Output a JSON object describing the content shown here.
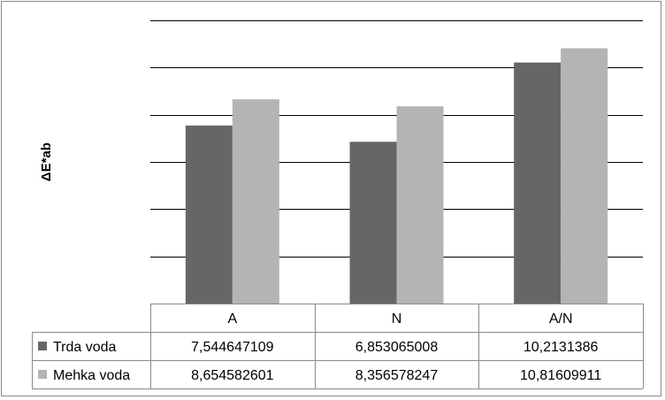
{
  "chart_data": {
    "type": "bar",
    "title": "",
    "xlabel": "",
    "ylabel": "ΔE*ab",
    "categories": [
      "A",
      "N",
      "A/N"
    ],
    "series": [
      {
        "name": "Trda voda",
        "values": [
          "7,544647109",
          "6,853065008",
          "10,2131386"
        ],
        "numeric": [
          7.544647109,
          6.853065008,
          10.2131386
        ],
        "color": "#666666"
      },
      {
        "name": "Mehka voda",
        "values": [
          "8,654582601",
          "8,356578247",
          "10,81609911"
        ],
        "numeric": [
          8.654582601,
          8.356578247,
          10.81609911
        ],
        "color": "#b4b4b4"
      }
    ],
    "ylim": [
      0,
      12
    ],
    "yticks_shown": false,
    "grid": true,
    "legend": "data-table"
  }
}
